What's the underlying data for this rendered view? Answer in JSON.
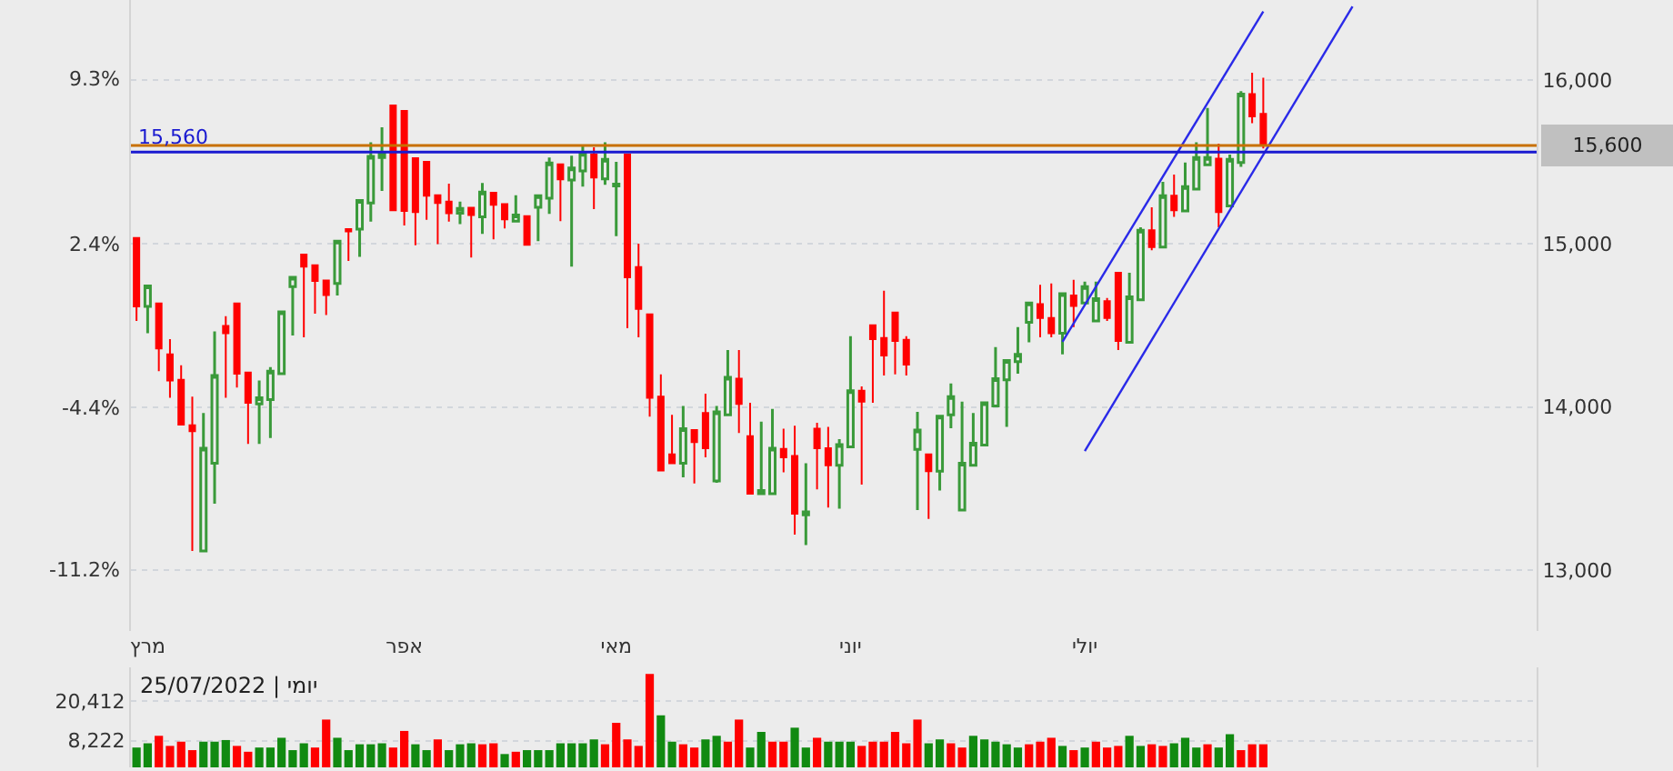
{
  "chart_data": [
    {
      "type": "candlestick",
      "categories": [
        null,
        "מרץ",
        null,
        null,
        null,
        null,
        null,
        null,
        null,
        null,
        null,
        null,
        null,
        null,
        null,
        null,
        null,
        null,
        null,
        null,
        null,
        null,
        null,
        null,
        "אפר",
        null,
        null,
        null,
        null,
        null,
        null,
        null,
        null,
        null,
        null,
        null,
        null,
        null,
        null,
        null,
        null,
        null,
        null,
        "מאי",
        null,
        null,
        null,
        null,
        null,
        null,
        null,
        null,
        null,
        null,
        null,
        null,
        null,
        null,
        null,
        null,
        null,
        null,
        null,
        null,
        "יוני",
        null,
        null,
        null,
        null,
        null,
        null,
        null,
        null,
        null,
        null,
        null,
        null,
        null,
        null,
        null,
        null,
        null,
        null,
        null,
        null,
        "יולי",
        null,
        null,
        null,
        null,
        null,
        null,
        null,
        null,
        null,
        null,
        null,
        null,
        null,
        null,
        null,
        null,
        null,
        null,
        null,
        null,
        null,
        null,
        null,
        null,
        null,
        null,
        null,
        null,
        null,
        null,
        null,
        null,
        null,
        null,
        null,
        null,
        null,
        null,
        null,
        null
      ],
      "ohlc": [
        [
          15034,
          15034,
          14526,
          14615
        ],
        [
          14615,
          14748,
          14452,
          14741
        ],
        [
          14634,
          14634,
          14219,
          14359
        ],
        [
          14322,
          14415,
          14056,
          14163
        ],
        [
          14167,
          14256,
          13893,
          13893
        ],
        [
          13889,
          14063,
          13119,
          13852
        ],
        [
          13119,
          13963,
          13119,
          13748
        ],
        [
          13656,
          14463,
          13408,
          14193
        ],
        [
          14496,
          14556,
          14056,
          14452
        ],
        [
          14634,
          14634,
          14119,
          14204
        ],
        [
          14211,
          14211,
          13774,
          14026
        ],
        [
          14019,
          14163,
          13774,
          14056
        ],
        [
          14045,
          14245,
          13811,
          14219
        ],
        [
          14204,
          14582,
          14204,
          14582
        ],
        [
          14737,
          14793,
          14437,
          14793
        ],
        [
          14933,
          14933,
          14426,
          14859
        ],
        [
          14867,
          14867,
          14571,
          14771
        ],
        [
          14774,
          14774,
          14563,
          14685
        ],
        [
          14756,
          15015,
          14682,
          15015
        ],
        [
          15089,
          15089,
          14893,
          15074
        ],
        [
          15089,
          15263,
          14919,
          15263
        ],
        [
          15248,
          15619,
          15134,
          15534
        ],
        [
          15526,
          15711,
          15322,
          15552
        ],
        [
          15845,
          15845,
          15204,
          15204
        ],
        [
          15811,
          15811,
          15111,
          15200
        ],
        [
          15522,
          15522,
          14989,
          15193
        ],
        [
          15500,
          15500,
          15145,
          15293
        ],
        [
          15296,
          15296,
          14997,
          15248
        ],
        [
          15256,
          15367,
          15134,
          15185
        ],
        [
          15185,
          15256,
          15119,
          15215
        ],
        [
          15219,
          15219,
          14915,
          15174
        ],
        [
          15163,
          15371,
          15059,
          15315
        ],
        [
          15311,
          15311,
          15026,
          15237
        ],
        [
          15241,
          15241,
          15093,
          15148
        ],
        [
          15137,
          15296,
          15137,
          15174
        ],
        [
          15167,
          15167,
          14993,
          14993
        ],
        [
          15222,
          15293,
          15015,
          15293
        ],
        [
          15278,
          15526,
          15182,
          15493
        ],
        [
          15485,
          15485,
          15137,
          15393
        ],
        [
          15389,
          15537,
          14859,
          15463
        ],
        [
          15445,
          15600,
          15348,
          15552
        ],
        [
          15545,
          15589,
          15211,
          15404
        ],
        [
          15396,
          15619,
          15359,
          15515
        ],
        [
          15352,
          15500,
          15045,
          15363
        ],
        [
          15545,
          15545,
          14482,
          14793
        ],
        [
          14856,
          15000,
          14426,
          14600
        ],
        [
          14567,
          14567,
          13941,
          14056
        ],
        [
          14063,
          14200,
          13611,
          13611
        ],
        [
          13711,
          13952,
          13656,
          13656
        ],
        [
          13656,
          14007,
          13570,
          13867
        ],
        [
          13859,
          13859,
          13533,
          13785
        ],
        [
          13963,
          14082,
          13693,
          13748
        ],
        [
          13548,
          14007,
          13537,
          13970
        ],
        [
          13952,
          14348,
          13952,
          14182
        ],
        [
          14174,
          14348,
          13841,
          14019
        ],
        [
          13822,
          14026,
          13470,
          13470
        ],
        [
          13470,
          13911,
          13470,
          13489
        ],
        [
          13470,
          13989,
          13470,
          13748
        ],
        [
          13744,
          13867,
          13600,
          13693
        ],
        [
          13700,
          13885,
          13219,
          13348
        ],
        [
          13341,
          13656,
          13156,
          13359
        ],
        [
          13867,
          13904,
          13496,
          13748
        ],
        [
          13748,
          13878,
          13385,
          13644
        ],
        [
          13644,
          13804,
          13378,
          13770
        ],
        [
          13756,
          14433,
          13756,
          14100
        ],
        [
          14100,
          14126,
          13526,
          14033
        ],
        [
          14500,
          14500,
          14026,
          14415
        ],
        [
          14422,
          14711,
          14193,
          14315
        ],
        [
          14578,
          14578,
          14200,
          14404
        ],
        [
          14411,
          14433,
          14193,
          14259
        ],
        [
          13741,
          13970,
          13370,
          13859
        ],
        [
          13711,
          13711,
          13315,
          13607
        ],
        [
          13607,
          13944,
          13489,
          13944
        ],
        [
          13952,
          14144,
          13870,
          14063
        ],
        [
          13370,
          14033,
          13370,
          13656
        ],
        [
          13644,
          13963,
          13644,
          13778
        ],
        [
          13767,
          14026,
          13767,
          14026
        ],
        [
          14007,
          14367,
          14007,
          14174
        ],
        [
          14167,
          14285,
          13878,
          14285
        ],
        [
          14278,
          14489,
          14204,
          14322
        ],
        [
          14519,
          14637,
          14396,
          14637
        ],
        [
          14630,
          14748,
          14426,
          14545
        ],
        [
          14545,
          14756,
          14426,
          14452
        ],
        [
          14452,
          14693,
          14322,
          14693
        ],
        [
          14682,
          14778,
          14489,
          14619
        ],
        [
          14637,
          14767,
          14637,
          14737
        ],
        [
          14526,
          14767,
          14526,
          14663
        ],
        [
          14648,
          14667,
          14526,
          14545
        ],
        [
          14822,
          14822,
          14348,
          14404
        ],
        [
          14396,
          14822,
          14396,
          14674
        ],
        [
          14656,
          15100,
          14656,
          15082
        ],
        [
          15082,
          15222,
          14959,
          14978
        ],
        [
          14978,
          15378,
          14978,
          15293
        ],
        [
          15293,
          15422,
          15163,
          15204
        ],
        [
          15200,
          15496,
          15200,
          15348
        ],
        [
          15333,
          15619,
          15333,
          15526
        ],
        [
          15482,
          15830,
          15482,
          15526
        ],
        [
          15519,
          15611,
          15100,
          15193
        ],
        [
          15230,
          15544,
          15230,
          15515
        ],
        [
          15496,
          15933,
          15470,
          15915
        ],
        [
          15915,
          16045,
          15737,
          15778
        ],
        [
          15793,
          16015,
          15582,
          15600
        ],
        null,
        null,
        null,
        null,
        null,
        null,
        null,
        null,
        null,
        null,
        null,
        null,
        null,
        null,
        null,
        null,
        null,
        null,
        null,
        null,
        null,
        null,
        null,
        null
      ],
      "colors": [
        "#ff0000",
        "#3a9a3a",
        "#ff0000",
        "#ff0000",
        "#ff0000",
        "#ff0000",
        "#3a9a3a",
        "#3a9a3a",
        "#ff0000",
        "#ff0000",
        "#ff0000",
        "#3a9a3a",
        "#3a9a3a",
        "#3a9a3a",
        "#3a9a3a",
        "#ff0000",
        "#ff0000",
        "#ff0000",
        "#3a9a3a",
        "#ff0000",
        "#3a9a3a",
        "#3a9a3a",
        "#3a9a3a",
        "#ff0000",
        "#ff0000",
        "#ff0000",
        "#ff0000",
        "#ff0000",
        "#ff0000",
        "#3a9a3a",
        "#ff0000",
        "#3a9a3a",
        "#ff0000",
        "#ff0000",
        "#3a9a3a",
        "#ff0000",
        "#3a9a3a",
        "#3a9a3a",
        "#ff0000",
        "#3a9a3a",
        "#3a9a3a",
        "#ff0000",
        "#3a9a3a",
        "#3a9a3a",
        "#ff0000",
        "#ff0000",
        "#ff0000",
        "#ff0000",
        "#ff0000",
        "#3a9a3a",
        "#ff0000",
        "#ff0000",
        "#3a9a3a",
        "#3a9a3a",
        "#ff0000",
        "#ff0000",
        "#3a9a3a",
        "#3a9a3a",
        "#ff0000",
        "#ff0000",
        "#3a9a3a",
        "#ff0000",
        "#ff0000",
        "#3a9a3a",
        "#3a9a3a",
        "#ff0000",
        "#ff0000",
        "#ff0000",
        "#ff0000",
        "#ff0000",
        "#3a9a3a",
        "#ff0000",
        "#3a9a3a",
        "#3a9a3a",
        "#3a9a3a",
        "#3a9a3a",
        "#3a9a3a",
        "#3a9a3a",
        "#3a9a3a",
        "#3a9a3a",
        "#3a9a3a",
        "#ff0000",
        "#ff0000",
        "#3a9a3a",
        "#ff0000",
        "#3a9a3a",
        "#3a9a3a",
        "#ff0000",
        "#ff0000",
        "#3a9a3a",
        "#3a9a3a",
        "#ff0000",
        "#3a9a3a",
        "#ff0000",
        "#3a9a3a",
        "#3a9a3a",
        "#3a9a3a",
        "#ff0000",
        "#3a9a3a",
        "#3a9a3a",
        "#ff0000",
        "#ff0000",
        null,
        null,
        null,
        null,
        null,
        null,
        null,
        null,
        null,
        null,
        null,
        null,
        null,
        null,
        null,
        null,
        null,
        null,
        null,
        null,
        null,
        null,
        null,
        null
      ],
      "ylim": [
        12630,
        16490
      ],
      "yticks": [
        {
          "value": 13000,
          "label": "13,000"
        },
        {
          "value": 14000,
          "label": "14,000"
        },
        {
          "value": 15000,
          "label": "15,000"
        },
        {
          "value": 16000,
          "label": "16,000"
        }
      ],
      "y2lim": [
        -13.72,
        12.64
      ],
      "y2ticks": [
        {
          "value": -11.2,
          "label": "-11.2%"
        },
        {
          "value": -4.4,
          "label": "-4.4%"
        },
        {
          "value": 2.4,
          "label": "2.4%"
        },
        {
          "value": 9.3,
          "label": "9.3%"
        }
      ],
      "grid": "y",
      "series": [
        {
          "type": "line",
          "color": "#2a2ae8",
          "values": [
            null,
            null,
            null,
            null,
            null,
            null,
            null,
            null,
            null,
            null,
            null,
            null,
            null,
            null,
            null,
            null,
            null,
            null,
            null,
            null,
            null,
            null,
            null,
            null,
            null,
            null,
            null,
            null,
            null,
            null,
            null,
            null,
            null,
            null,
            null,
            null,
            null,
            null,
            null,
            null,
            null,
            null,
            null,
            null,
            null,
            null,
            null,
            null,
            null,
            null,
            null,
            null,
            null,
            null,
            null,
            null,
            null,
            null,
            null,
            null,
            null,
            null,
            null,
            null,
            null,
            null,
            null,
            null,
            null,
            null,
            null,
            null,
            null,
            null,
            null,
            null,
            null,
            null,
            null,
            null,
            null,
            null,
            null,
            14400,
            null,
            null,
            null,
            null,
            null,
            null,
            null,
            null,
            null,
            null,
            null,
            null,
            null,
            null,
            null,
            null,
            null,
            16420,
            null,
            null,
            null,
            null,
            null,
            null,
            null,
            null,
            null,
            null,
            null,
            null,
            null,
            null,
            null,
            null,
            null,
            null,
            null,
            null,
            null,
            null,
            null,
            null
          ]
        },
        {
          "type": "line",
          "color": "#2a2ae8",
          "values": [
            null,
            null,
            null,
            null,
            null,
            null,
            null,
            null,
            null,
            null,
            null,
            null,
            null,
            null,
            null,
            null,
            null,
            null,
            null,
            null,
            null,
            null,
            null,
            null,
            null,
            null,
            null,
            null,
            null,
            null,
            null,
            null,
            null,
            null,
            null,
            null,
            null,
            null,
            null,
            null,
            null,
            null,
            null,
            null,
            null,
            null,
            null,
            null,
            null,
            null,
            null,
            null,
            null,
            null,
            null,
            null,
            null,
            null,
            null,
            null,
            null,
            null,
            null,
            null,
            null,
            null,
            null,
            null,
            null,
            null,
            null,
            null,
            null,
            null,
            null,
            null,
            null,
            null,
            null,
            null,
            null,
            null,
            null,
            null,
            null,
            13730,
            null,
            null,
            null,
            null,
            null,
            null,
            null,
            null,
            null,
            null,
            null,
            null,
            null,
            null,
            null,
            null,
            null,
            null,
            null,
            null,
            null,
            null,
            null,
            16450,
            null,
            null,
            null,
            null,
            null,
            null,
            null,
            null,
            null,
            null,
            null,
            null,
            null,
            null,
            null,
            null
          ]
        }
      ],
      "ref_lines": [
        {
          "axis": "y",
          "value": 15560,
          "label": "15,560",
          "color": "#1a1ad0"
        },
        {
          "axis": "y",
          "value": 15600,
          "label": "15,600",
          "color": "#c87000"
        }
      ]
    },
    {
      "type": "bar",
      "categories": [
        null,
        null,
        null,
        null,
        null,
        null,
        null,
        null,
        null,
        null,
        null,
        null,
        null,
        null,
        null,
        null,
        null,
        null,
        null,
        null,
        null,
        null,
        null,
        null,
        null,
        null,
        null,
        null,
        null,
        null,
        null,
        null,
        null,
        null,
        null,
        null,
        null,
        null,
        null,
        null,
        null,
        null,
        null,
        null,
        null,
        null,
        null,
        null,
        null,
        null,
        null,
        null,
        null,
        null,
        null,
        null,
        null,
        null,
        null,
        null,
        null,
        null,
        null,
        null,
        null,
        null,
        null,
        null,
        null,
        null,
        null,
        null,
        null,
        null,
        null,
        null,
        null,
        null,
        null,
        null,
        null,
        null,
        null,
        null,
        null,
        null,
        null,
        null,
        null,
        null,
        null,
        null,
        null,
        null,
        null,
        null,
        null,
        null,
        null,
        null,
        null,
        null
      ],
      "values": [
        6100,
        7400,
        9700,
        6600,
        7900,
        5300,
        7900,
        7900,
        8400,
        6600,
        4800,
        6100,
        6100,
        9100,
        5300,
        7400,
        6100,
        14700,
        9100,
        5300,
        7100,
        7100,
        7400,
        6100,
        11200,
        7100,
        5300,
        8600,
        5300,
        7100,
        7400,
        7100,
        7400,
        4100,
        4800,
        5300,
        5300,
        5300,
        7400,
        7400,
        7400,
        8600,
        7100,
        13700,
        8600,
        6600,
        28700,
        16000,
        7900,
        7100,
        6100,
        8600,
        9700,
        7900,
        14700,
        6100,
        10900,
        7900,
        7900,
        12200,
        6100,
        9100,
        7900,
        7900,
        7900,
        6600,
        7900,
        7900,
        10900,
        7400,
        14700,
        7400,
        8600,
        7400,
        6100,
        9700,
        8600,
        7900,
        7100,
        6100,
        7100,
        7900,
        9100,
        6600,
        5300,
        6100,
        7900,
        6100,
        6600,
        9700,
        6600,
        7100,
        6600,
        7400,
        9100,
        6100,
        7100,
        6100,
        10200,
        5300,
        7100,
        7100
      ],
      "colors": [
        "#118a11",
        "#118a11",
        "#ff0000",
        "#ff0000",
        "#ff0000",
        "#ff0000",
        "#118a11",
        "#118a11",
        "#118a11",
        "#ff0000",
        "#ff0000",
        "#118a11",
        "#118a11",
        "#118a11",
        "#118a11",
        "#118a11",
        "#ff0000",
        "#ff0000",
        "#118a11",
        "#118a11",
        "#118a11",
        "#118a11",
        "#118a11",
        "#ff0000",
        "#ff0000",
        "#118a11",
        "#118a11",
        "#ff0000",
        "#118a11",
        "#118a11",
        "#118a11",
        "#ff0000",
        "#ff0000",
        "#118a11",
        "#ff0000",
        "#118a11",
        "#118a11",
        "#118a11",
        "#118a11",
        "#118a11",
        "#118a11",
        "#118a11",
        "#ff0000",
        "#ff0000",
        "#ff0000",
        "#ff0000",
        "#ff0000",
        "#118a11",
        "#118a11",
        "#ff0000",
        "#ff0000",
        "#118a11",
        "#118a11",
        "#ff0000",
        "#ff0000",
        "#118a11",
        "#118a11",
        "#ff0000",
        "#ff0000",
        "#118a11",
        "#118a11",
        "#ff0000",
        "#118a11",
        "#118a11",
        "#118a11",
        "#ff0000",
        "#ff0000",
        "#ff0000",
        "#ff0000",
        "#ff0000",
        "#ff0000",
        "#118a11",
        "#118a11",
        "#ff0000",
        "#ff0000",
        "#118a11",
        "#118a11",
        "#118a11",
        "#118a11",
        "#118a11",
        "#ff0000",
        "#ff0000",
        "#ff0000",
        "#118a11",
        "#ff0000",
        "#118a11",
        "#ff0000",
        "#ff0000",
        "#ff0000",
        "#118a11",
        "#118a11",
        "#ff0000",
        "#ff0000",
        "#118a11",
        "#118a11",
        "#118a11",
        "#ff0000",
        "#118a11",
        "#118a11",
        "#ff0000",
        "#ff0000",
        "#ff0000"
      ],
      "ylim": [
        0,
        30750
      ],
      "yticks": [
        {
          "value": 8222,
          "label": "8,222"
        },
        {
          "value": 20412,
          "label": "20,412"
        }
      ],
      "grid": "y",
      "tick_labels": "y",
      "annotations": [
        "25/07/2022 | יומי"
      ]
    }
  ]
}
